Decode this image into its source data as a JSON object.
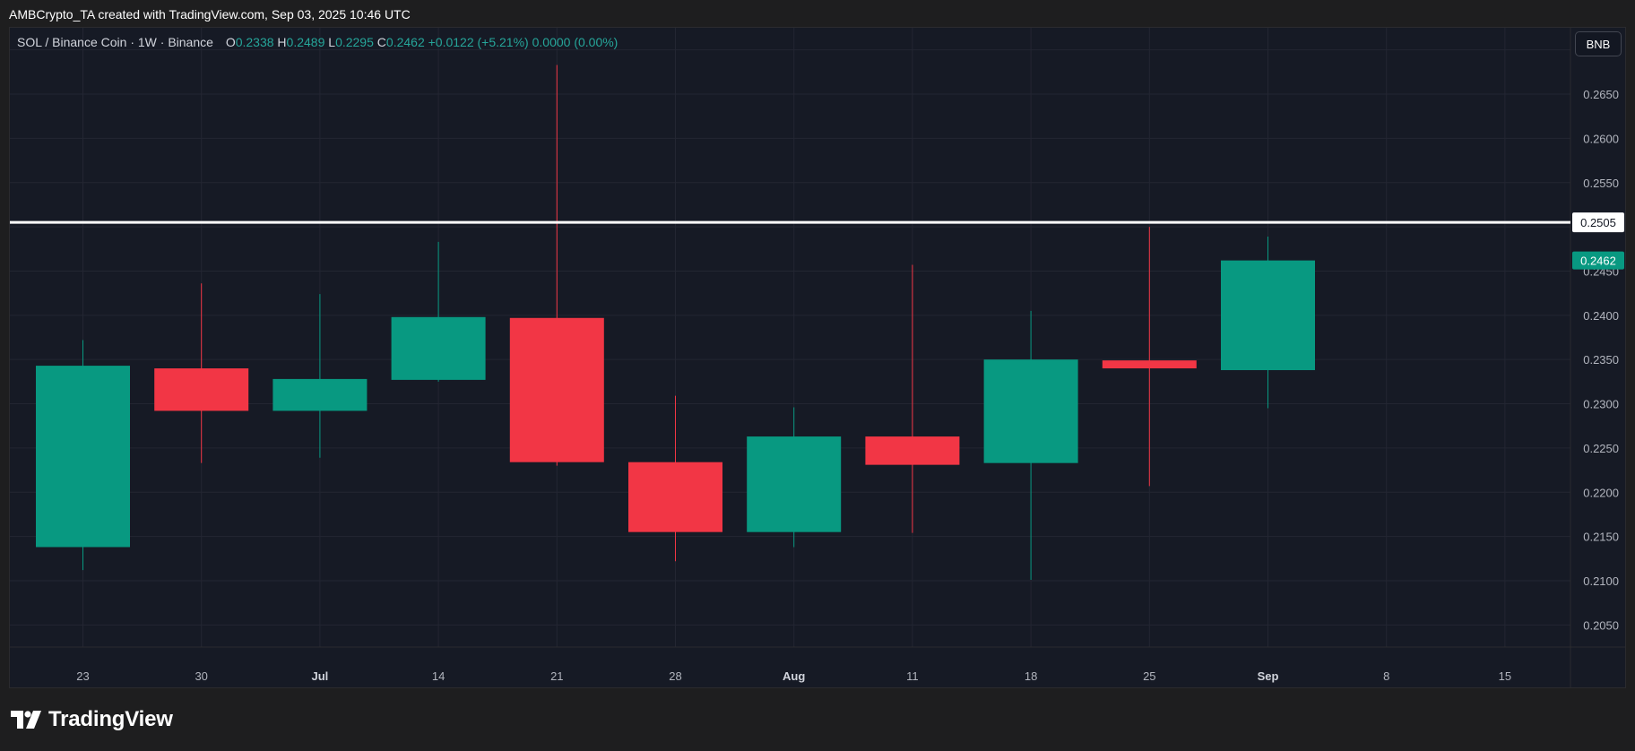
{
  "header": {
    "attribution": "AMBCrypto_TA created with TradingView.com, Sep 03, 2025 10:46 UTC"
  },
  "legend": {
    "symbol": "SOL / Binance Coin · 1W · Binance",
    "o_label": "O",
    "o_value": "0.2338",
    "h_label": "H",
    "h_value": "0.2489",
    "l_label": "L",
    "l_value": "0.2295",
    "c_label": "C",
    "c_value": "0.2462",
    "change": "+0.0122 (+5.21%)",
    "extra": "0.0000 (0.00%)"
  },
  "currency_button": "BNB",
  "brand": {
    "name": "TradingView"
  },
  "colors": {
    "up": "#089981",
    "down": "#f23645",
    "background": "#161a25",
    "grid": "#232632",
    "axis_text": "#b2b5be",
    "hline": "#ffffff"
  },
  "chart_data": {
    "type": "candlestick",
    "title": "SOL / Binance Coin · 1W · Binance",
    "ylim": [
      0.2025,
      0.2725
    ],
    "y_ticks": [
      "0.2050",
      "0.2100",
      "0.2150",
      "0.2200",
      "0.2250",
      "0.2300",
      "0.2350",
      "0.2400",
      "0.2450",
      "0.2500",
      "0.2550",
      "0.2600",
      "0.2650",
      "0.2700"
    ],
    "x_ticks": [
      "23",
      "30",
      "Jul",
      "14",
      "21",
      "28",
      "Aug",
      "11",
      "18",
      "25",
      "Sep",
      "8",
      "15"
    ],
    "x_ticks_bold": [
      "Jul",
      "Aug",
      "Sep"
    ],
    "candles": [
      {
        "x": "Jun 23",
        "open": 0.2138,
        "high": 0.2372,
        "low": 0.2112,
        "close": 0.2343
      },
      {
        "x": "Jun 30",
        "open": 0.234,
        "high": 0.2436,
        "low": 0.2233,
        "close": 0.2292
      },
      {
        "x": "Jul 7",
        "open": 0.2292,
        "high": 0.2424,
        "low": 0.2239,
        "close": 0.2328
      },
      {
        "x": "Jul 14",
        "open": 0.2327,
        "high": 0.2483,
        "low": 0.2325,
        "close": 0.2398
      },
      {
        "x": "Jul 21",
        "open": 0.2397,
        "high": 0.2683,
        "low": 0.223,
        "close": 0.2234
      },
      {
        "x": "Jul 28",
        "open": 0.2234,
        "high": 0.2309,
        "low": 0.2122,
        "close": 0.2155
      },
      {
        "x": "Aug 4",
        "open": 0.2155,
        "high": 0.2296,
        "low": 0.2138,
        "close": 0.2263
      },
      {
        "x": "Aug 11",
        "open": 0.2263,
        "high": 0.2457,
        "low": 0.2154,
        "close": 0.2231
      },
      {
        "x": "Aug 18",
        "open": 0.2233,
        "high": 0.2405,
        "low": 0.2101,
        "close": 0.235
      },
      {
        "x": "Aug 25",
        "open": 0.2349,
        "high": 0.25,
        "low": 0.2207,
        "close": 0.234
      },
      {
        "x": "Sep 1",
        "open": 0.2338,
        "high": 0.2489,
        "low": 0.2295,
        "close": 0.2462
      }
    ],
    "horizontal_line": {
      "value": 0.2505,
      "label": "0.2505"
    },
    "last_price": {
      "value": 0.2462,
      "label": "0.2462"
    },
    "grid": true
  }
}
